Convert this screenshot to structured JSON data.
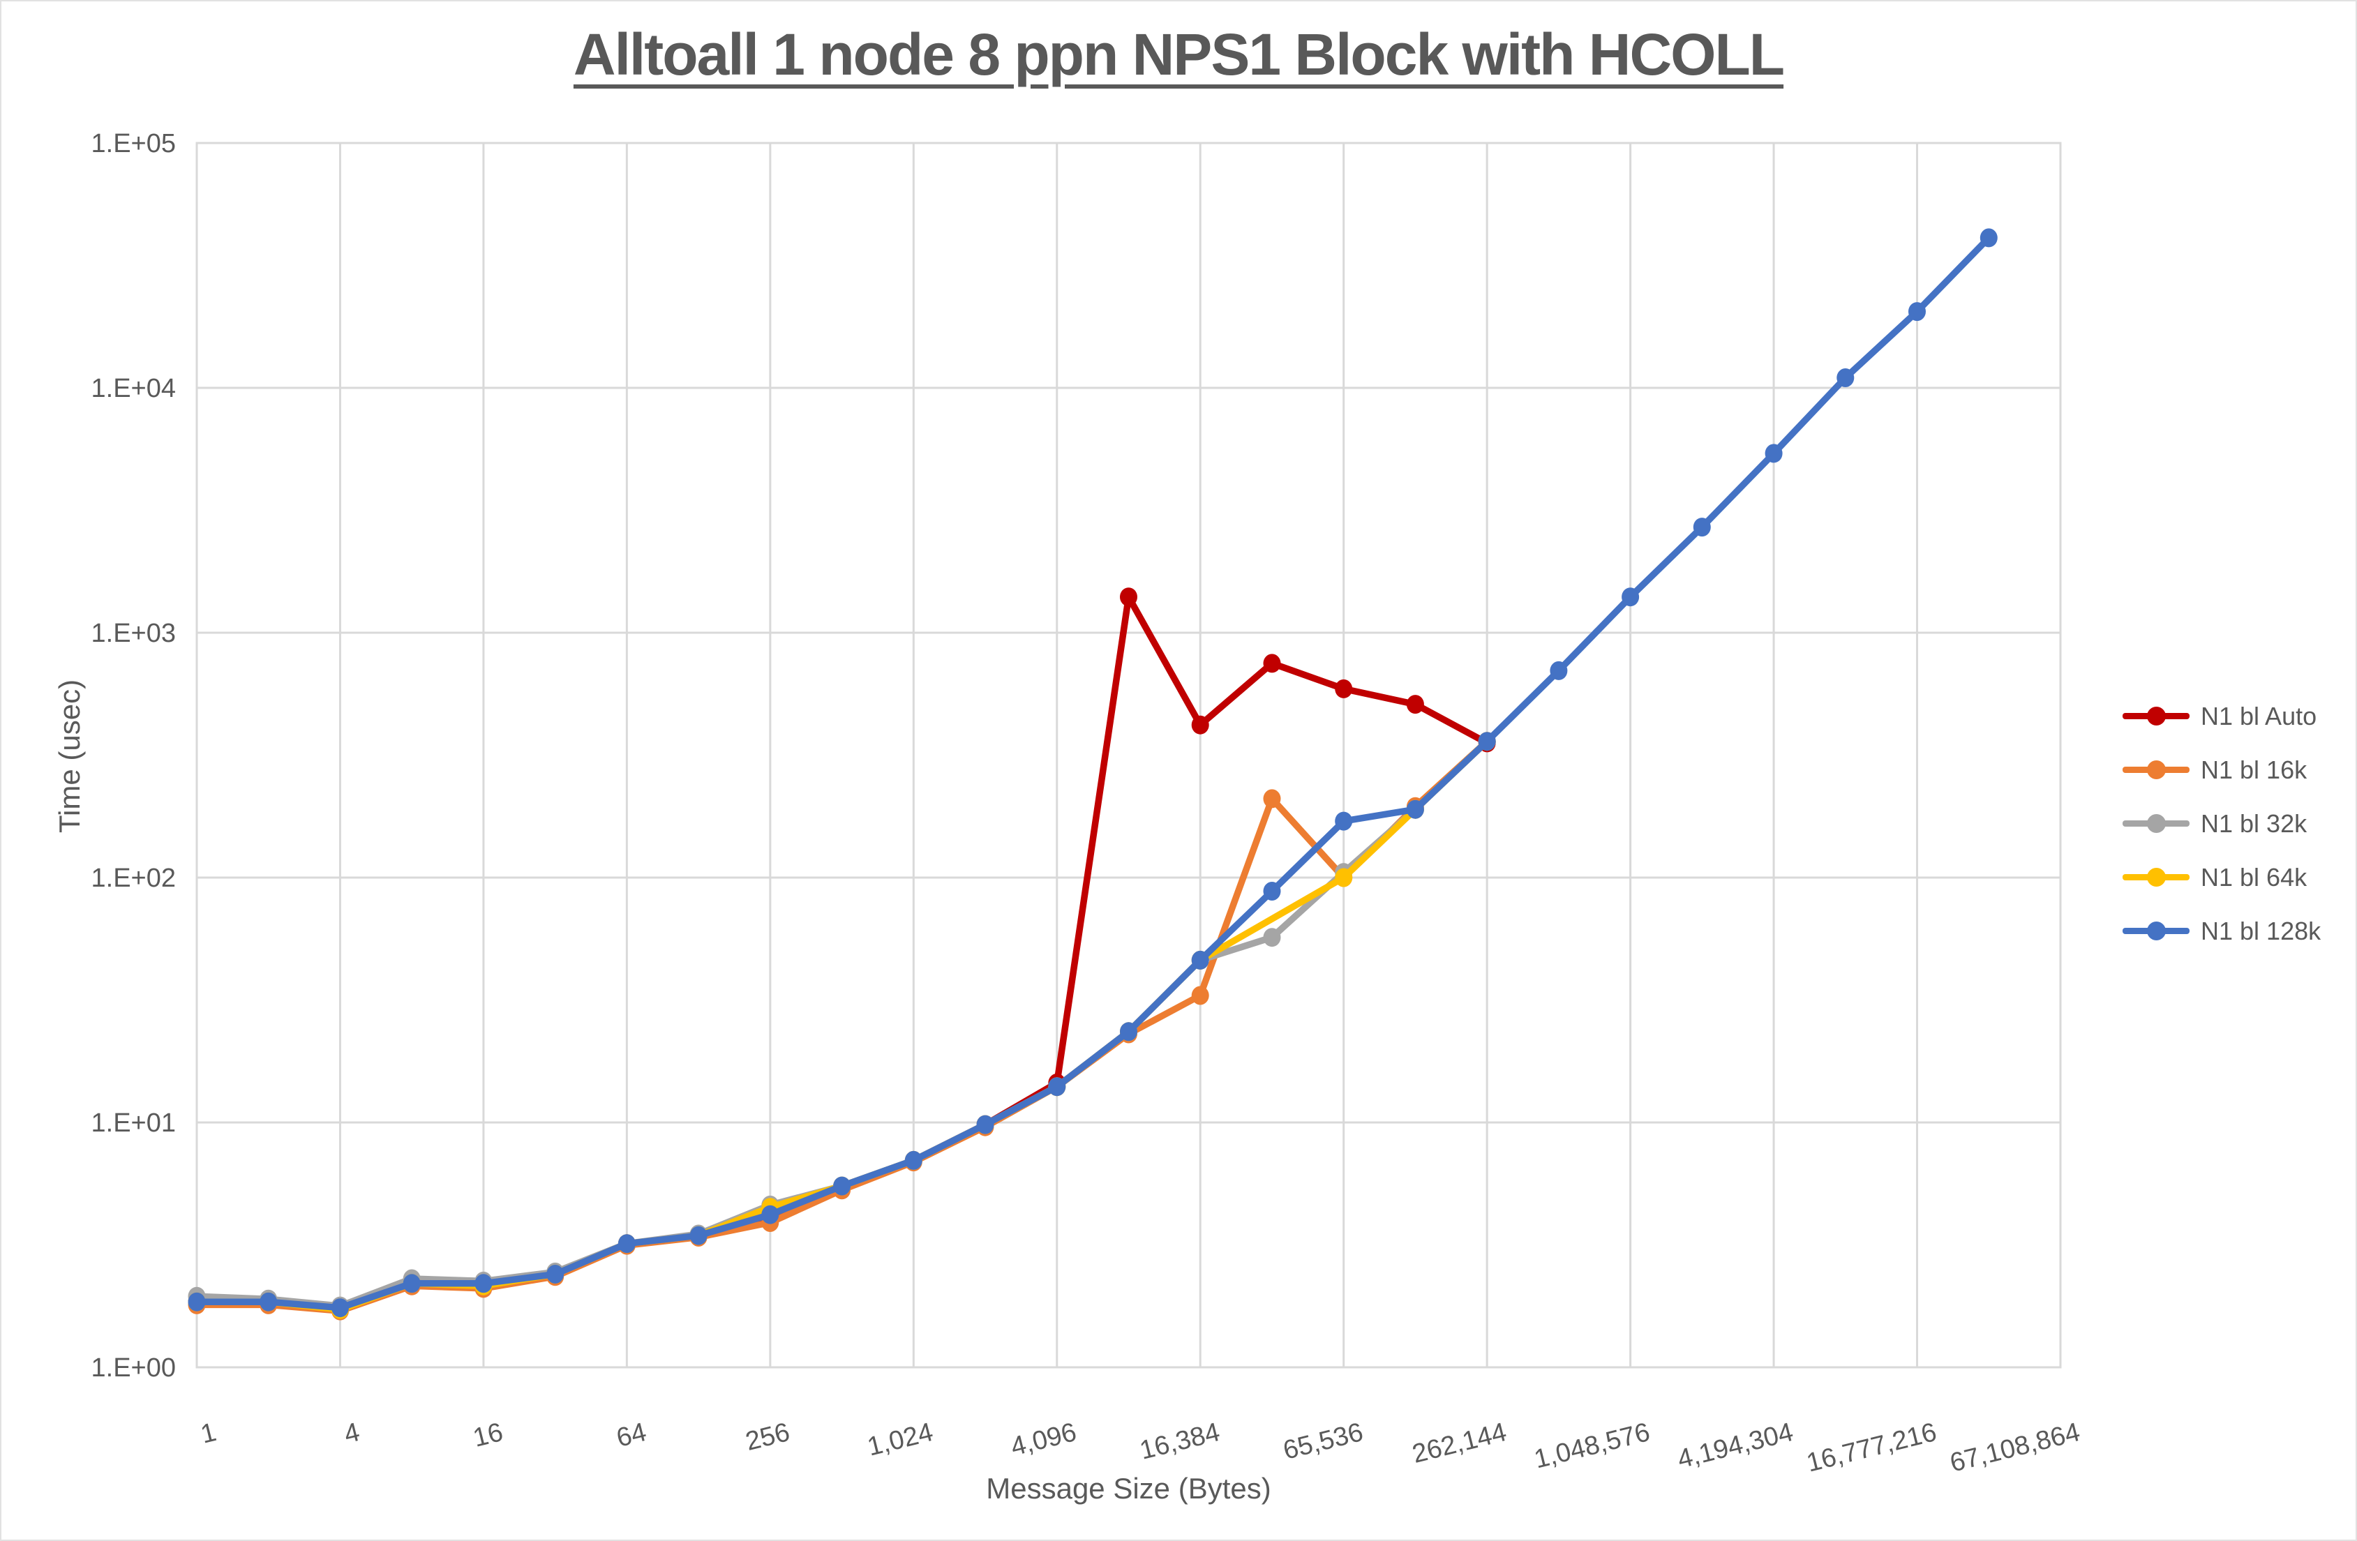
{
  "title": "Alltoall 1 node 8 ppn NPS1 Block with HCOLL",
  "chart_data": {
    "type": "line",
    "title": "Alltoall 1 node 8 ppn NPS1 Block with HCOLL",
    "xlabel": "Message Size (Bytes)",
    "ylabel": "Time (usec)",
    "x_scale": "log2-categories",
    "y_scale": "log10",
    "ylim": [
      1,
      100000
    ],
    "grid": true,
    "legend_position": "right",
    "y_tick_labels": [
      "1.E+00",
      "1.E+01",
      "1.E+02",
      "1.E+03",
      "1.E+04",
      "1.E+05"
    ],
    "x_tick_labels": [
      "1",
      "4",
      "16",
      "64",
      "256",
      "1,024",
      "4,096",
      "16,384",
      "65,536",
      "262,144",
      "1,048,576",
      "4,194,304",
      "16,777,216",
      "67,108,864"
    ],
    "categories": [
      1,
      2,
      4,
      8,
      16,
      32,
      64,
      128,
      256,
      512,
      1024,
      2048,
      4096,
      8192,
      16384,
      32768,
      65536,
      131072,
      262144,
      524288,
      1048576,
      2097152,
      4194304,
      8388608,
      16777216,
      33554432,
      67108864
    ],
    "series": [
      {
        "name": "N1 bl Auto",
        "color": "#C00000",
        "values": [
          1.85,
          1.85,
          1.75,
          2.2,
          2.2,
          2.4,
          3.2,
          3.45,
          4.0,
          5.4,
          7,
          9.8,
          14.5,
          1400,
          420,
          750,
          590,
          510,
          355
        ]
      },
      {
        "name": "N1 bl 16k",
        "color": "#ED7D31",
        "values": [
          1.8,
          1.8,
          1.7,
          2.15,
          2.1,
          2.35,
          3.15,
          3.4,
          3.9,
          5.3,
          6.9,
          9.6,
          14,
          23,
          33,
          210,
          100,
          195,
          360
        ]
      },
      {
        "name": "N1 bl 32k",
        "color": "#A5A5A5",
        "values": [
          1.95,
          1.9,
          1.78,
          2.3,
          2.25,
          2.45,
          3.2,
          3.5,
          4.6,
          5.5,
          7,
          9.8,
          14,
          23.5,
          46,
          57,
          105,
          190,
          360
        ]
      },
      {
        "name": "N1 bl 64k",
        "color": "#FFC000",
        "values": [
          1.85,
          1.85,
          1.72,
          2.2,
          2.15,
          2.4,
          3.2,
          3.45,
          4.5,
          5.5,
          7,
          9.8,
          14,
          23.5,
          46,
          null,
          100,
          190,
          360
        ]
      },
      {
        "name": "N1 bl 128k",
        "color": "#4472C4",
        "values": [
          1.85,
          1.85,
          1.75,
          2.2,
          2.2,
          2.4,
          3.2,
          3.45,
          4.2,
          5.5,
          7,
          9.8,
          14,
          23.5,
          46,
          88,
          170,
          190,
          360,
          700,
          1400,
          2700,
          5400,
          11000,
          20500,
          41000,
          null
        ]
      }
    ]
  },
  "colors": {
    "text": "#595959",
    "gridline": "#D9D9D9",
    "plot_border": "#D9D9D9",
    "background": "#FFFFFF"
  }
}
